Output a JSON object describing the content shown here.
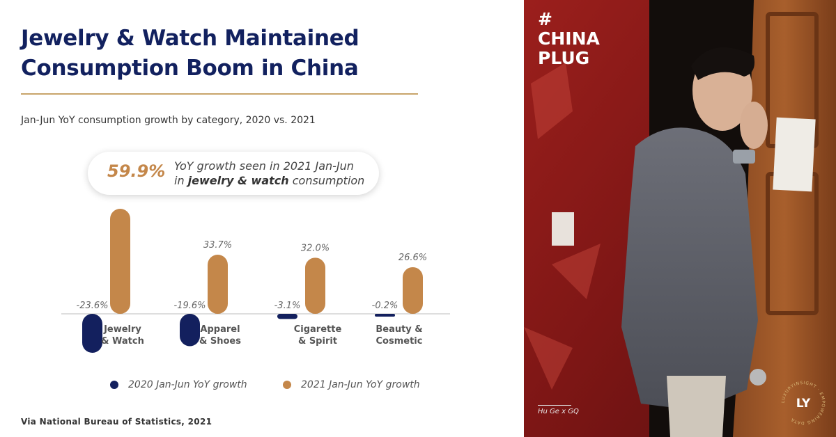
{
  "title": {
    "line1": "Jewelry & Watch Maintained",
    "line2": "Consumption Boom in China"
  },
  "subtitle": "Jan-Jun YoY consumption growth by category, 2020 vs. 2021",
  "callout": {
    "value": "59.9%",
    "line1": "YoY growth seen in 2021 Jan-Jun",
    "line2_prefix": "in ",
    "line2_bold": "jewelry & watch",
    "line2_suffix": " consumption"
  },
  "chart_data": {
    "type": "bar",
    "categories": [
      [
        "Jewelry",
        "& Watch"
      ],
      [
        "Apparel",
        "& Shoes"
      ],
      [
        "Cigarette",
        "& Spirit"
      ],
      [
        "Beauty &",
        "Cosmetic"
      ]
    ],
    "series": [
      {
        "name": "2020 Jan-Jun YoY growth",
        "color": "#13205e",
        "values": [
          -23.6,
          -19.6,
          -3.1,
          -0.2
        ],
        "labels": [
          "-23.6%",
          "-19.6%",
          "-3.1%",
          "-0.2%"
        ]
      },
      {
        "name": "2021 Jan-Jun YoY growth",
        "color": "#c4874a",
        "values": [
          59.9,
          33.7,
          32.0,
          26.6
        ],
        "labels": [
          "",
          "33.7%",
          "32.0%",
          "26.6%"
        ]
      }
    ],
    "unit": "%"
  },
  "legend": {
    "item2020": "2020 Jan-Jun YoY growth",
    "item2021": "2021 Jan-Jun YoY growth"
  },
  "source": "Via National Bureau of Statistics, 2021",
  "photo": {
    "hashtag": "#",
    "tag_line1": "CHINA",
    "tag_line2": "PLUG",
    "credit": "Hu Ge x GQ"
  },
  "logo": {
    "mark": "LY",
    "ring_text": "LUXURYINSIGHT · EMPOWERING DATA"
  },
  "colors": {
    "navy": "#13205e",
    "gold": "#c4874a",
    "rule": "#c8a46a"
  }
}
